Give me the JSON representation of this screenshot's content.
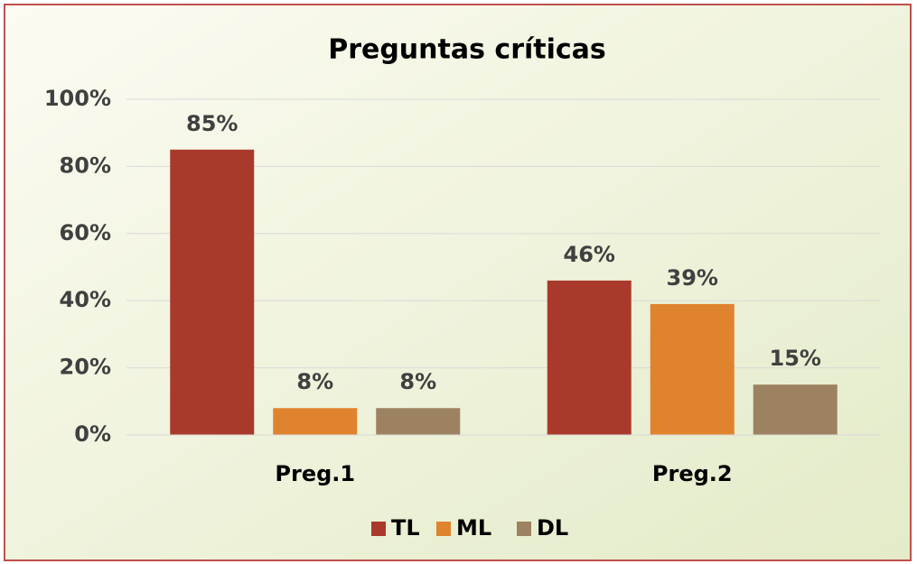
{
  "chart_data": {
    "type": "bar",
    "title": "Preguntas críticas",
    "categories": [
      "Preg.1",
      "Preg.2"
    ],
    "series": [
      {
        "name": "TL",
        "color": "#a93a2b",
        "values": [
          85,
          46
        ],
        "value_labels": [
          "85%",
          "46%"
        ]
      },
      {
        "name": "ML",
        "color": "#e0832e",
        "values": [
          8,
          39
        ],
        "value_labels": [
          "8%",
          "39%"
        ]
      },
      {
        "name": "DL",
        "color": "#9c8260",
        "values": [
          8,
          15
        ],
        "value_labels": [
          "8%",
          "15%"
        ]
      }
    ],
    "ylim": [
      0,
      100
    ],
    "yticks": [
      {
        "value": 0,
        "label": "0%"
      },
      {
        "value": 20,
        "label": "20%"
      },
      {
        "value": 40,
        "label": "40%"
      },
      {
        "value": 60,
        "label": "60%"
      },
      {
        "value": 80,
        "label": "80%"
      },
      {
        "value": 100,
        "label": "100%"
      }
    ],
    "grid": true,
    "legend": "bottom"
  }
}
